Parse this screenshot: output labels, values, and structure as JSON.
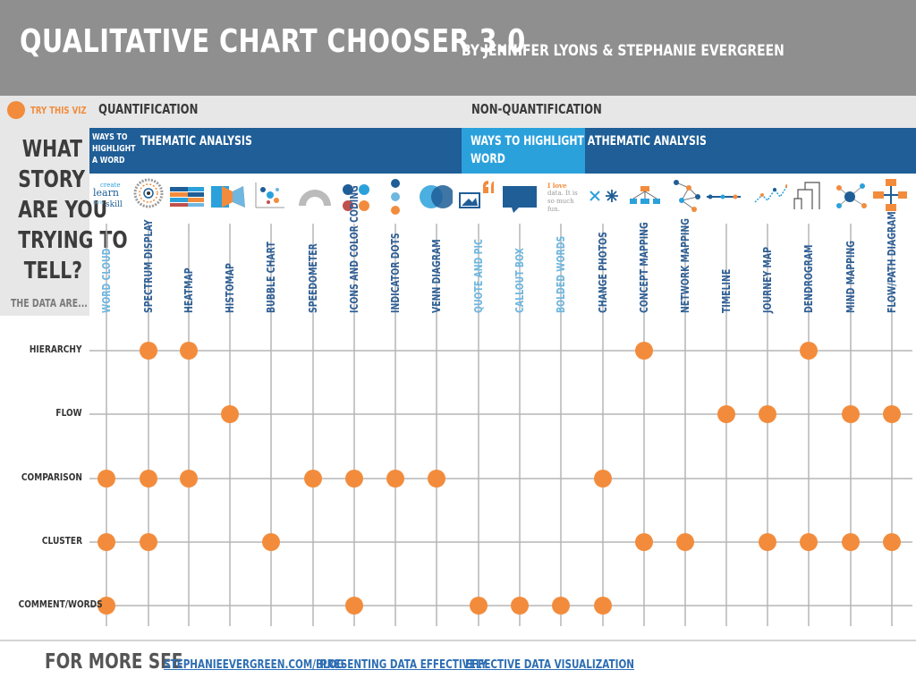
{
  "header": {
    "title": "QUALITATIVE CHART CHOOSER 3.0",
    "byline": "BY JENNIFER LYONS & STEPHANIE EVERGREEN"
  },
  "legend": {
    "label": "TRY THIS VIZ",
    "color": "#f28c3c"
  },
  "sections": {
    "quant": "QUANTIFICATION",
    "nonquant": "NON-QUANTIFICATION"
  },
  "question": {
    "lines": [
      "WHAT",
      "STORY",
      "ARE YOU",
      "TRYING TO",
      "TELL?"
    ],
    "data_are": "THE DATA ARE..."
  },
  "bands": {
    "q_ways": [
      "WAYS TO",
      "HIGHLIGHT",
      "A WORD"
    ],
    "q_thematic": "THEMATIC ANALYSIS",
    "n_ways": [
      "WAYS TO HIGHLIGHT A",
      "WORD"
    ],
    "n_thematic": "THEMATIC ANALYSIS"
  },
  "icons": {
    "word_cloud": [
      "create",
      "learn",
      "new",
      "skill"
    ],
    "bolded_words": [
      "I love",
      "data. It is",
      "so much",
      "fun."
    ]
  },
  "columns": [
    {
      "label": "WORD CLOUD",
      "style": "light"
    },
    {
      "label": "SPECTRUM DISPLAY",
      "style": "dark"
    },
    {
      "label": "HEATMAP",
      "style": "dark"
    },
    {
      "label": "HISTOMAP",
      "style": "dark"
    },
    {
      "label": "BUBBLE CHART",
      "style": "dark"
    },
    {
      "label": "SPEEDOMETER",
      "style": "dark"
    },
    {
      "label": "ICONS AND COLOR CODING",
      "style": "dark"
    },
    {
      "label": "INDICATOR DOTS",
      "style": "dark"
    },
    {
      "label": "VENN DIAGRAM",
      "style": "dark"
    },
    {
      "label": "QUOTE AND PIC",
      "style": "light"
    },
    {
      "label": "CALLOUT BOX",
      "style": "light"
    },
    {
      "label": "BOLDED WORDS",
      "style": "light"
    },
    {
      "label": "CHANGE PHOTOS",
      "style": "dark"
    },
    {
      "label": "CONCEPT MAPPING",
      "style": "dark"
    },
    {
      "label": "NETWORK MAPPING",
      "style": "dark"
    },
    {
      "label": "TIMELINE",
      "style": "dark"
    },
    {
      "label": "JOURNEY MAP",
      "style": "dark"
    },
    {
      "label": "DENDROGRAM",
      "style": "dark"
    },
    {
      "label": "MIND MAPPING",
      "style": "dark"
    },
    {
      "label": "FLOW/PATH DIAGRAM",
      "style": "dark"
    }
  ],
  "rows": [
    "HIERARCHY",
    "FLOW",
    "COMPARISON",
    "CLUSTER",
    "COMMENT/WORDS"
  ],
  "matrix": [
    [
      1,
      2,
      13,
      17
    ],
    [
      3,
      15,
      16,
      18,
      19
    ],
    [
      0,
      1,
      2,
      5,
      6,
      7,
      8,
      12
    ],
    [
      0,
      1,
      4,
      13,
      14,
      16,
      17,
      18,
      19
    ],
    [
      0,
      6,
      9,
      10,
      11,
      12
    ]
  ],
  "footer": {
    "label": "FOR MORE SEE",
    "links": [
      "STEPHANIEEVERGREEN.COM/BLOG",
      "PRESENTING DATA EFFECTIVELY",
      "EFFECTIVE DATA VISUALIZATION"
    ]
  }
}
